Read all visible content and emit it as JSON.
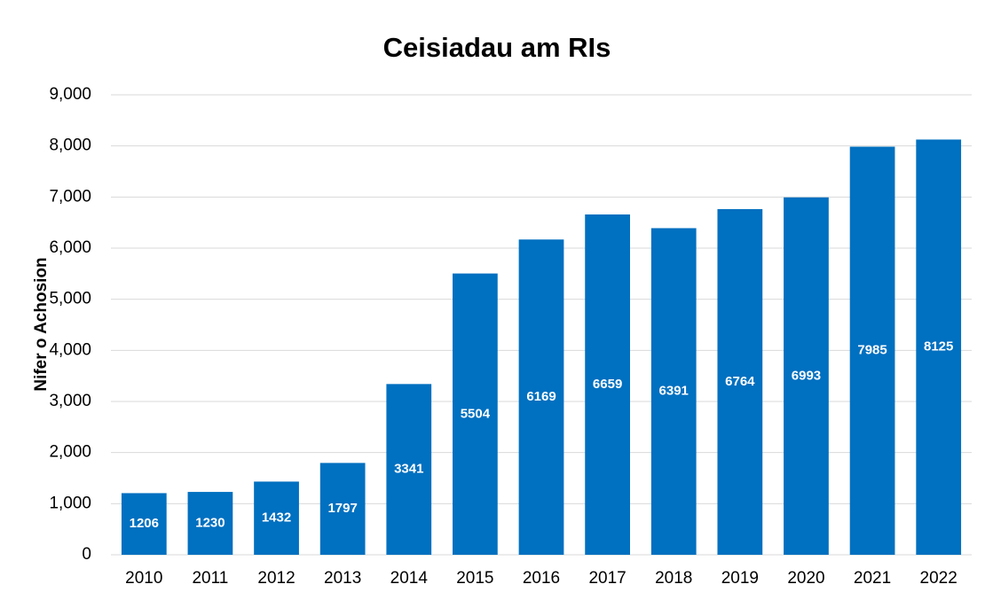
{
  "chart_data": {
    "type": "bar",
    "title": "Ceisiadau am RIs",
    "y_label": "Nifer o Achosion",
    "categories": [
      "2010",
      "2011",
      "2012",
      "2013",
      "2014",
      "2015",
      "2016",
      "2017",
      "2018",
      "2019",
      "2020",
      "2021",
      "2022"
    ],
    "values": [
      1206,
      1230,
      1432,
      1797,
      3341,
      5504,
      6169,
      6659,
      6391,
      6764,
      6993,
      7985,
      8125
    ],
    "color": "#0070c0",
    "ylim": [
      0,
      9000
    ],
    "yticks": [
      0,
      {
        "value": 1000,
        "label": "1,000"
      },
      {
        "value": 2000,
        "label": "2,000"
      },
      {
        "value": 3000,
        "label": "3,000"
      },
      {
        "value": 4000,
        "label": "4,000"
      },
      {
        "value": 5000,
        "label": "5,000"
      },
      {
        "value": 6000,
        "label": "6,000"
      },
      {
        "value": 7000,
        "label": "7,000"
      },
      {
        "value": 8000,
        "label": "8,000"
      },
      {
        "value": 9000,
        "label": "9,000"
      }
    ],
    "grid": true
  }
}
